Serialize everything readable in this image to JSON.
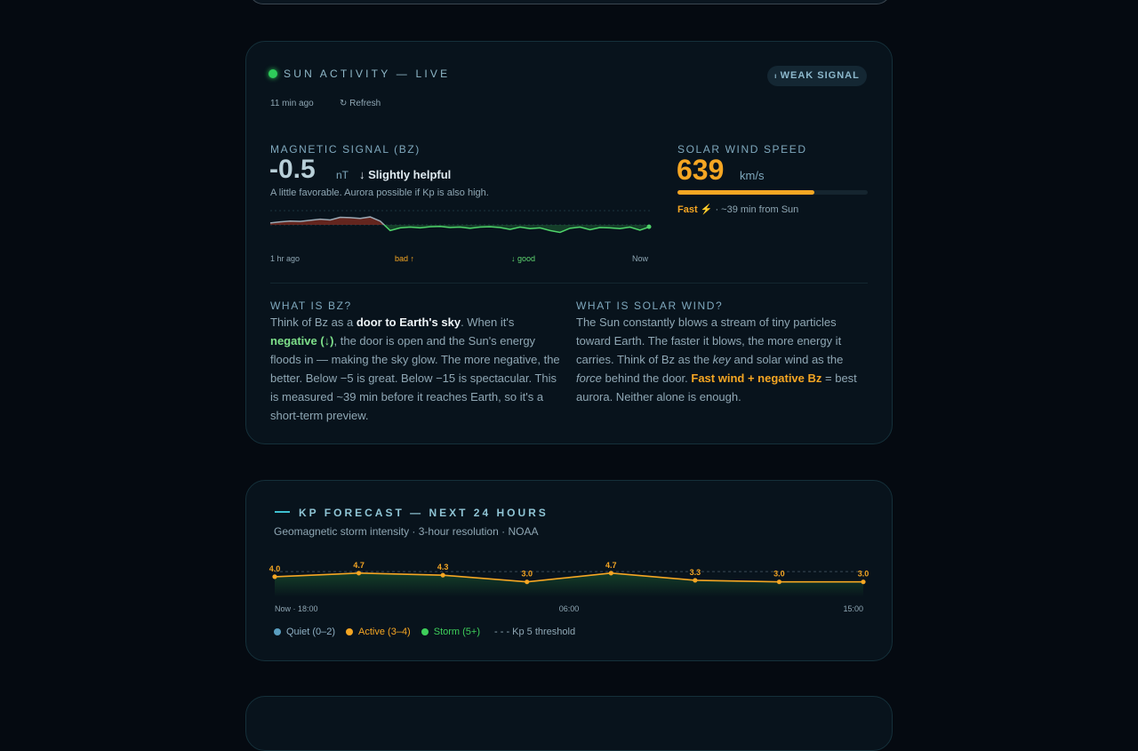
{
  "sun": {
    "title": "SUN ACTIVITY — LIVE",
    "badge": "WEAK SIGNAL",
    "updated": "11 min ago",
    "refresh": "↻ Refresh",
    "bz": {
      "label": "MAGNETIC SIGNAL (BZ)",
      "value": "-0.5",
      "unit": "nT",
      "verdict": "↓ Slightly helpful",
      "note": "A little favorable. Aurora possible if Kp is also high.",
      "chart": {
        "type": "line",
        "values": [
          0.5,
          0.8,
          1.0,
          0.9,
          1.2,
          1.5,
          1.3,
          2.0,
          1.9,
          1.7,
          2.1,
          1.0,
          -1.5,
          -0.8,
          -0.6,
          -0.8,
          -0.5,
          -0.4,
          -0.7,
          -0.6,
          -0.9,
          -0.6,
          -0.5,
          -0.7,
          -1.2,
          -0.6,
          -1.0,
          -0.8,
          -1.5,
          -2.0,
          -0.9,
          -0.6,
          -1.3,
          -0.7,
          -0.8,
          -1.0,
          -0.6,
          -1.4,
          -0.5
        ],
        "ylim": [
          -4,
          4
        ],
        "x_start": "1 hr ago",
        "bad": "bad ↑",
        "good": "↓ good",
        "x_end": "Now"
      }
    },
    "wind": {
      "label": "SOLAR WIND SPEED",
      "value": 639,
      "unit": "km/s",
      "range": [
        0,
        890
      ],
      "speed": "Fast ⚡",
      "eta": "· ~39 min from Sun"
    },
    "bz_help": {
      "title": "WHAT IS BZ?",
      "parts": [
        "Think of Bz as a ",
        "door to Earth's sky",
        ". When it's ",
        "negative (↓)",
        ", the door is open and the Sun's energy floods in — making the sky glow. The more negative, the better. Below −5 is great. Below −15 is spectacular. This is measured ~39 min before it reaches Earth, so it's a short-term preview."
      ]
    },
    "wind_help": {
      "title": "WHAT IS SOLAR WIND?",
      "parts": [
        "The Sun constantly blows a stream of tiny particles toward Earth. The faster it blows, the more energy it carries. Think of Bz as the ",
        "key",
        " and solar wind as the ",
        "force",
        " behind the door. ",
        "Fast wind + negative Bz",
        " = best aurora. Neither alone is enough."
      ]
    }
  },
  "kp": {
    "title": "KP FORECAST — NEXT 24 HOURS",
    "subtitle": "Geomagnetic storm intensity · 3-hour resolution · NOAA",
    "chart_data": {
      "type": "line",
      "values": [
        4.0,
        4.7,
        4.3,
        3.0,
        4.7,
        3.3,
        3.0,
        3.0
      ],
      "value_labels": [
        "4.0",
        "4.7",
        "4.3",
        "3.0",
        "4.7",
        "3.3",
        "3.0",
        "3.0"
      ],
      "color": "#f5a623",
      "ylim": [
        0,
        9
      ],
      "threshold": 5,
      "x_labels": [
        "Now · 18:00",
        "06:00",
        "15:00"
      ],
      "legend": [
        {
          "name": "Quiet (0–2)",
          "color": "#5a9ec0"
        },
        {
          "name": "Active (3–4)",
          "color": "#f5a623"
        },
        {
          "name": "Storm (5+)",
          "color": "#3ecf5a"
        }
      ],
      "threshold_label": "- - - Kp 5 threshold"
    }
  }
}
